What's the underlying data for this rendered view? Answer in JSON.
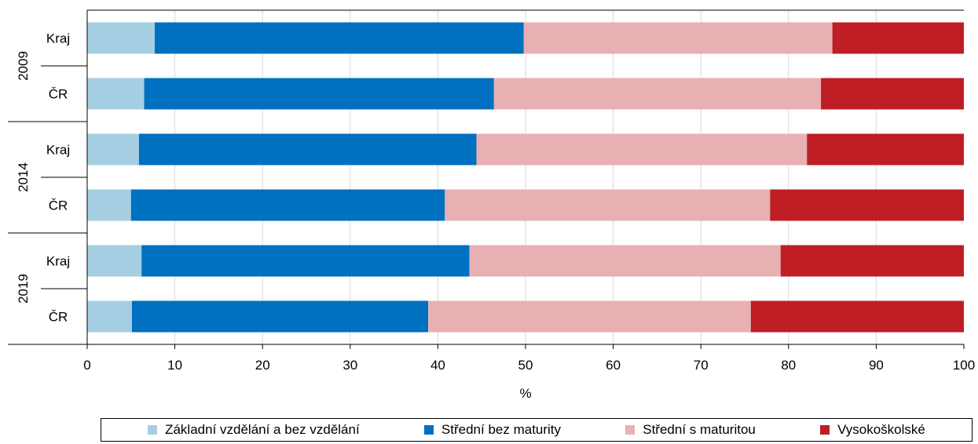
{
  "chart_data": {
    "type": "bar",
    "orientation": "horizontal",
    "stacked": true,
    "xlabel": "%",
    "xlim": [
      0,
      100
    ],
    "xticks": [
      "0",
      "10",
      "20",
      "30",
      "40",
      "50",
      "60",
      "70",
      "80",
      "90",
      "100"
    ],
    "grid": "vertical",
    "groups": [
      {
        "label": "2009",
        "rows": [
          {
            "label": "Kraj",
            "values": [
              7.7,
              42.1,
              35.2,
              15.0
            ]
          },
          {
            "label": "ČR",
            "values": [
              6.5,
              39.9,
              37.3,
              16.3
            ]
          }
        ]
      },
      {
        "label": "2014",
        "rows": [
          {
            "label": "Kraj",
            "values": [
              5.9,
              38.5,
              37.7,
              17.9
            ]
          },
          {
            "label": "ČR",
            "values": [
              5.0,
              35.8,
              37.1,
              22.1
            ]
          }
        ]
      },
      {
        "label": "2019",
        "rows": [
          {
            "label": "Kraj",
            "values": [
              6.2,
              37.4,
              35.5,
              20.9
            ]
          },
          {
            "label": "ČR",
            "values": [
              5.1,
              33.8,
              36.8,
              24.3
            ]
          }
        ]
      }
    ],
    "series": [
      {
        "name": "Základní vzdělání a bez vzdělání",
        "color": "#a6cee3"
      },
      {
        "name": "Střední bez maturity",
        "color": "#0070c0"
      },
      {
        "name": "Střední s maturitou",
        "color": "#e8b0b3"
      },
      {
        "name": "Vysokoškolské",
        "color": "#be1e24"
      }
    ],
    "legend_position": "bottom"
  }
}
